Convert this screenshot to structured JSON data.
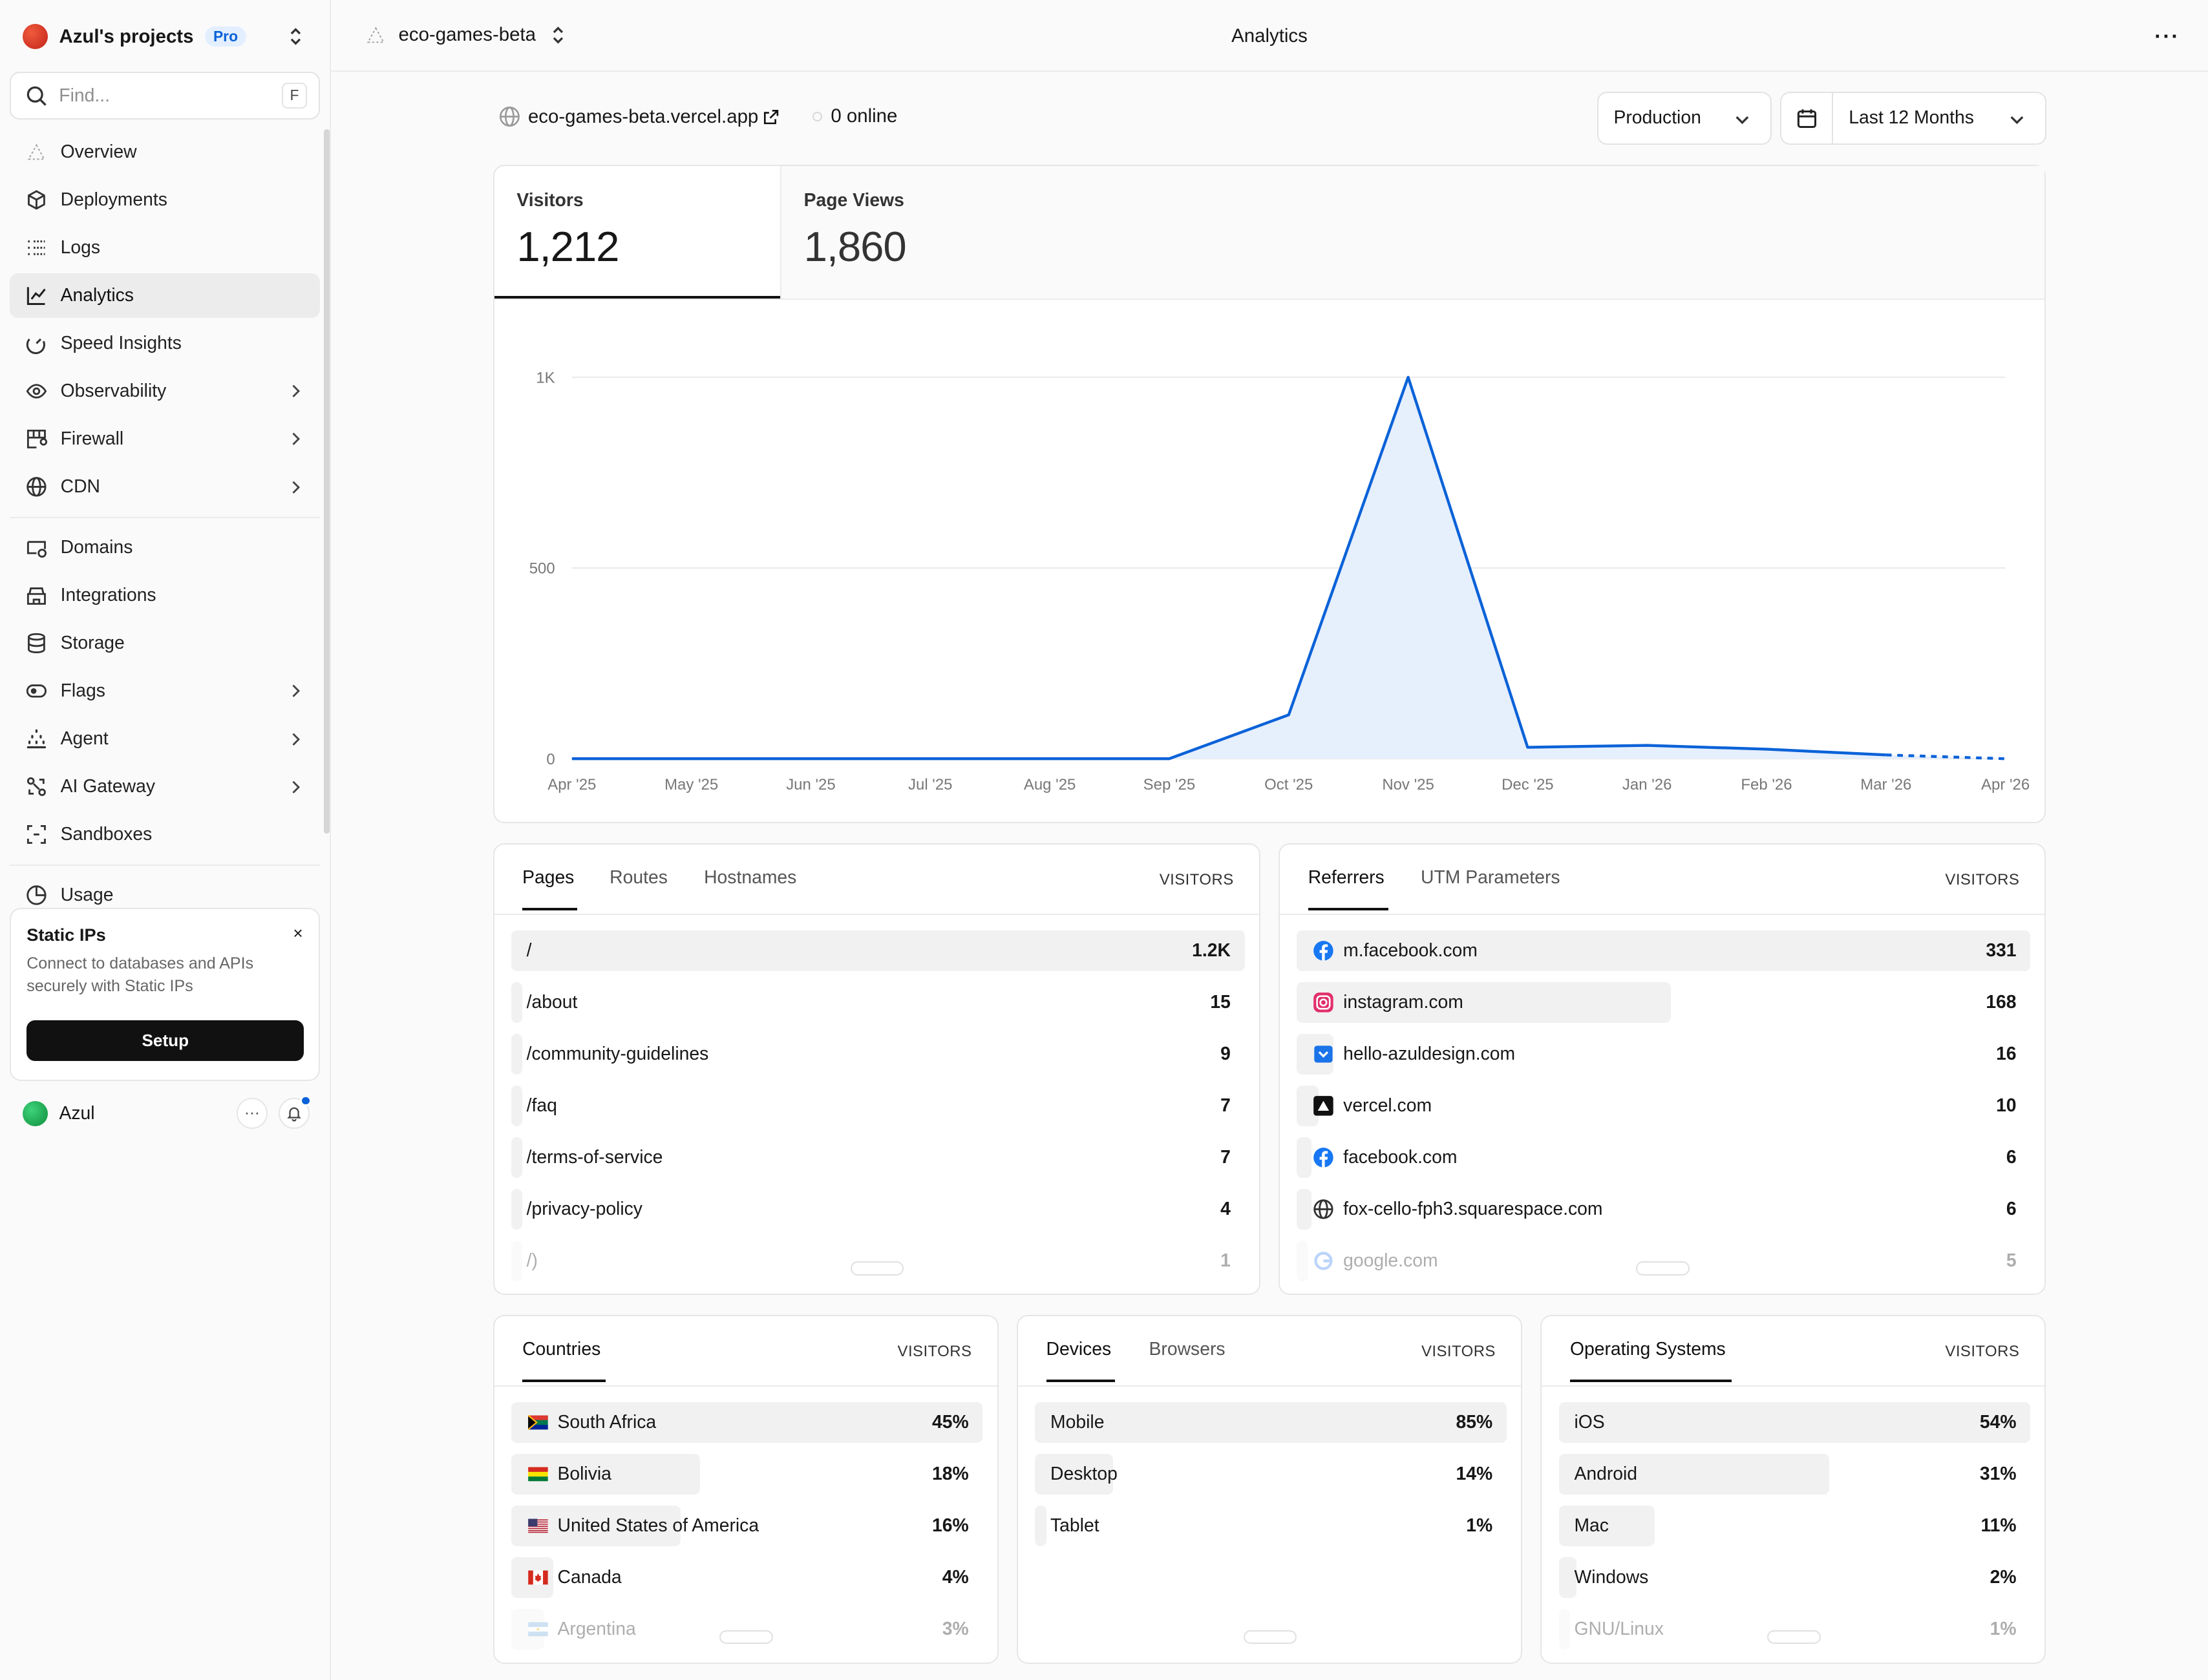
{
  "sidebar": {
    "team_name": "Azul's projects",
    "plan_badge": "Pro",
    "find_placeholder": "Find...",
    "find_shortcut": "F",
    "nav": [
      {
        "label": "Overview",
        "icon": "overview-icon"
      },
      {
        "label": "Deployments",
        "icon": "box-icon"
      },
      {
        "label": "Logs",
        "icon": "list-icon"
      },
      {
        "label": "Analytics",
        "icon": "chart-icon",
        "active": true
      },
      {
        "label": "Speed Insights",
        "icon": "gauge-icon"
      },
      {
        "label": "Observability",
        "icon": "eye-icon",
        "chevron": true
      },
      {
        "label": "Firewall",
        "icon": "firewall-icon",
        "chevron": true
      },
      {
        "label": "CDN",
        "icon": "globe-icon",
        "chevron": true
      },
      {
        "label": "Domains",
        "icon": "domains-icon"
      },
      {
        "label": "Integrations",
        "icon": "integrations-icon"
      },
      {
        "label": "Storage",
        "icon": "database-icon"
      },
      {
        "label": "Flags",
        "icon": "toggle-icon",
        "chevron": true
      },
      {
        "label": "Agent",
        "icon": "agent-icon",
        "chevron": true
      },
      {
        "label": "AI Gateway",
        "icon": "ai-gateway-icon",
        "chevron": true
      },
      {
        "label": "Sandboxes",
        "icon": "sandbox-icon"
      },
      {
        "label": "Usage",
        "icon": "usage-icon"
      }
    ],
    "promo": {
      "title": "Static IPs",
      "description": "Connect to databases and APIs securely with Static IPs",
      "button": "Setup",
      "close": "×"
    },
    "user": {
      "name": "Azul",
      "more": "···"
    }
  },
  "topbar": {
    "project": "eco-games-beta",
    "title": "Analytics",
    "more": "···"
  },
  "main": {
    "url": "eco-games-beta.vercel.app",
    "online": "0 online",
    "environment": "Production",
    "range": "Last 12 Months",
    "stats": [
      {
        "label": "Visitors",
        "value": "1,212",
        "active": true
      },
      {
        "label": "Page Views",
        "value": "1,860"
      }
    ]
  },
  "chart_data": {
    "type": "area",
    "x": [
      "Apr '25",
      "May '25",
      "Jun '25",
      "Jul '25",
      "Aug '25",
      "Sep '25",
      "Oct '25",
      "Nov '25",
      "Dec '25",
      "Jan '26",
      "Feb '26",
      "Mar '26",
      "Apr '26"
    ],
    "series": [
      {
        "values": [
          0,
          0,
          0,
          0,
          0,
          0,
          115,
          1000,
          30,
          35,
          25,
          10,
          0
        ]
      }
    ],
    "y_ticks": [
      "0",
      "500",
      "1K"
    ],
    "ylim": [
      0,
      1000
    ],
    "dashed_from_index": 11,
    "grid": true,
    "color": "#0a62d8",
    "fill": "#e6effc"
  },
  "pages_panel": {
    "tabs": [
      "Pages",
      "Routes",
      "Hostnames"
    ],
    "column": "VISITORS",
    "rows": [
      {
        "label": "/",
        "value": "1.2K",
        "frac": 1.0
      },
      {
        "label": "/about",
        "value": "15",
        "frac": 0.012
      },
      {
        "label": "/community-guidelines",
        "value": "9",
        "frac": 0.008
      },
      {
        "label": "/faq",
        "value": "7",
        "frac": 0.006
      },
      {
        "label": "/terms-of-service",
        "value": "7",
        "frac": 0.006
      },
      {
        "label": "/privacy-policy",
        "value": "4",
        "frac": 0.004
      },
      {
        "label": "/)",
        "value": "1",
        "frac": 0.001
      }
    ]
  },
  "referrers_panel": {
    "tabs": [
      "Referrers",
      "UTM Parameters"
    ],
    "column": "VISITORS",
    "rows": [
      {
        "label": "m.facebook.com",
        "value": "331",
        "frac": 1.0,
        "icon": "facebook-icon"
      },
      {
        "label": "instagram.com",
        "value": "168",
        "frac": 0.51,
        "icon": "instagram-icon"
      },
      {
        "label": "hello-azuldesign.com",
        "value": "16",
        "frac": 0.05,
        "icon": "pocket-icon"
      },
      {
        "label": "vercel.com",
        "value": "10",
        "frac": 0.03,
        "icon": "vercel-icon"
      },
      {
        "label": "facebook.com",
        "value": "6",
        "frac": 0.02,
        "icon": "facebook-icon"
      },
      {
        "label": "fox-cello-fph3.squarespace.com",
        "value": "6",
        "frac": 0.02,
        "icon": "globe-icon"
      },
      {
        "label": "google.com",
        "value": "5",
        "frac": 0.015,
        "icon": "google-icon"
      }
    ]
  },
  "countries_panel": {
    "tabs": [
      "Countries"
    ],
    "column": "VISITORS",
    "rows": [
      {
        "label": "South Africa",
        "value": "45%",
        "frac": 1.0,
        "icon": "south-africa-flag-icon"
      },
      {
        "label": "Bolivia",
        "value": "18%",
        "frac": 0.4,
        "icon": "bolivia-flag-icon"
      },
      {
        "label": "United States of America",
        "value": "16%",
        "frac": 0.36,
        "icon": "usa-flag-icon"
      },
      {
        "label": "Canada",
        "value": "4%",
        "frac": 0.09,
        "icon": "canada-flag-icon"
      },
      {
        "label": "Argentina",
        "value": "3%",
        "frac": 0.07,
        "icon": "argentina-flag-icon"
      }
    ]
  },
  "devices_panel": {
    "tabs": [
      "Devices",
      "Browsers"
    ],
    "column": "VISITORS",
    "rows": [
      {
        "label": "Mobile",
        "value": "85%",
        "frac": 1.0
      },
      {
        "label": "Desktop",
        "value": "14%",
        "frac": 0.165
      },
      {
        "label": "Tablet",
        "value": "1%",
        "frac": 0.012
      }
    ]
  },
  "os_panel": {
    "tabs": [
      "Operating Systems"
    ],
    "column": "VISITORS",
    "rows": [
      {
        "label": "iOS",
        "value": "54%",
        "frac": 1.0
      },
      {
        "label": "Android",
        "value": "31%",
        "frac": 0.574
      },
      {
        "label": "Mac",
        "value": "11%",
        "frac": 0.204
      },
      {
        "label": "Windows",
        "value": "2%",
        "frac": 0.037
      },
      {
        "label": "GNU/Linux",
        "value": "1%",
        "frac": 0.019
      }
    ]
  }
}
